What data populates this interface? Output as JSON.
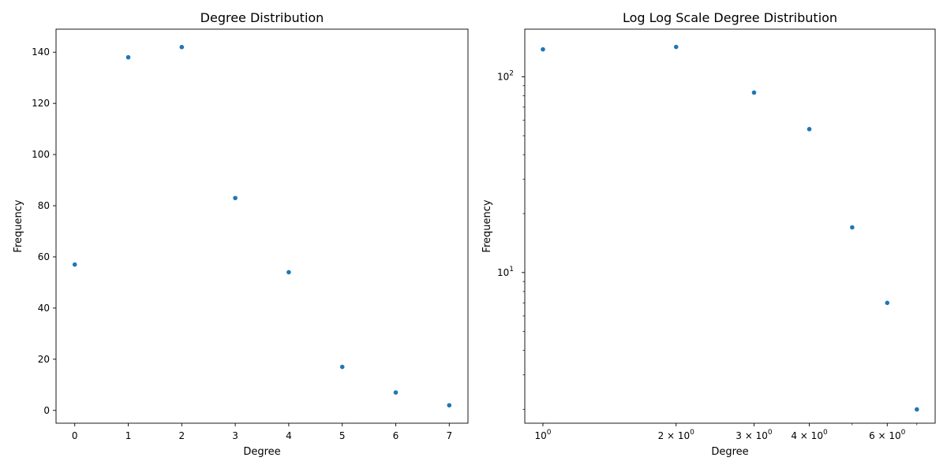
{
  "chart_data": [
    {
      "type": "scatter",
      "title": "Degree Distribution",
      "xlabel": "Degree",
      "ylabel": "Frequency",
      "xscale": "linear",
      "yscale": "linear",
      "xlim": [
        -0.35,
        7.35
      ],
      "ylim": [
        -5,
        149
      ],
      "xticks": [
        0,
        1,
        2,
        3,
        4,
        5,
        6,
        7
      ],
      "xtick_labels": [
        "0",
        "1",
        "2",
        "3",
        "4",
        "5",
        "6",
        "7"
      ],
      "yticks": [
        0,
        20,
        40,
        60,
        80,
        100,
        120,
        140
      ],
      "ytick_labels": [
        "0",
        "20",
        "40",
        "60",
        "80",
        "100",
        "120",
        "140"
      ],
      "color": "#1f77b4",
      "grid": false,
      "series": [
        {
          "x": [
            0,
            1,
            2,
            3,
            4,
            5,
            6,
            7
          ],
          "y": [
            57,
            138,
            142,
            83,
            54,
            17,
            7,
            2
          ]
        }
      ]
    },
    {
      "type": "scatter",
      "title": "Log Log Scale Degree Distribution",
      "xlabel": "Degree",
      "ylabel": "Frequency",
      "xscale": "log",
      "yscale": "log",
      "xlim": [
        0.91,
        7.7
      ],
      "ylim": [
        1.7,
        175
      ],
      "xticks": [
        1,
        2,
        3,
        4,
        6
      ],
      "xtick_labels": [
        {
          "base": "10",
          "exp": "0"
        },
        {
          "base": "2 × 10",
          "exp": "0"
        },
        {
          "base": "3 × 10",
          "exp": "0"
        },
        {
          "base": "4 × 10",
          "exp": "0"
        },
        {
          "base": "6 × 10",
          "exp": "0"
        }
      ],
      "yticks": [
        10,
        100
      ],
      "ytick_labels": [
        {
          "base": "10",
          "exp": "1"
        },
        {
          "base": "10",
          "exp": "2"
        }
      ],
      "color": "#1f77b4",
      "grid": false,
      "series": [
        {
          "x": [
            1,
            2,
            3,
            4,
            5,
            6,
            7
          ],
          "y": [
            138,
            142,
            83,
            54,
            17,
            7,
            2
          ]
        }
      ]
    }
  ]
}
